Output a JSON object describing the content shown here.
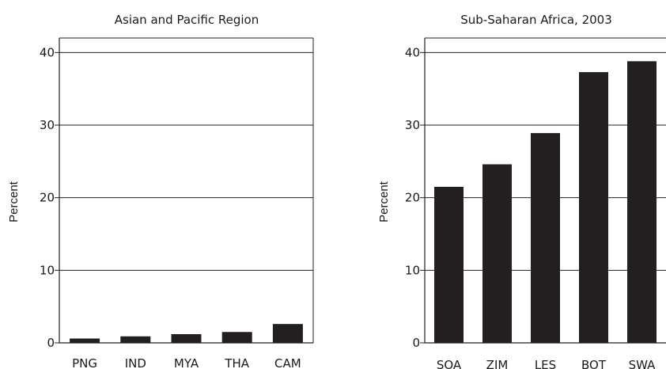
{
  "chart_data": [
    {
      "type": "bar",
      "title": "Asian and Pacific Region",
      "xlabel": "",
      "ylabel": "Percent",
      "ylim": [
        0,
        42
      ],
      "yticks": [
        0,
        10,
        20,
        30,
        40
      ],
      "grid": true,
      "categories": [
        "PNG",
        "IND",
        "MYA",
        "THA",
        "CAM"
      ],
      "values": [
        0.6,
        0.9,
        1.2,
        1.5,
        2.6
      ],
      "bar_color": "#231f20"
    },
    {
      "type": "bar",
      "title": "Sub-Saharan Africa, 2003",
      "xlabel": "",
      "ylabel": "Percent",
      "ylim": [
        0,
        42
      ],
      "yticks": [
        0,
        10,
        20,
        30,
        40
      ],
      "grid": true,
      "categories": [
        "SOA",
        "ZIM",
        "LES",
        "BOT",
        "SWA"
      ],
      "values": [
        21.5,
        24.6,
        28.9,
        37.3,
        38.8
      ],
      "bar_color": "#231f20"
    }
  ]
}
